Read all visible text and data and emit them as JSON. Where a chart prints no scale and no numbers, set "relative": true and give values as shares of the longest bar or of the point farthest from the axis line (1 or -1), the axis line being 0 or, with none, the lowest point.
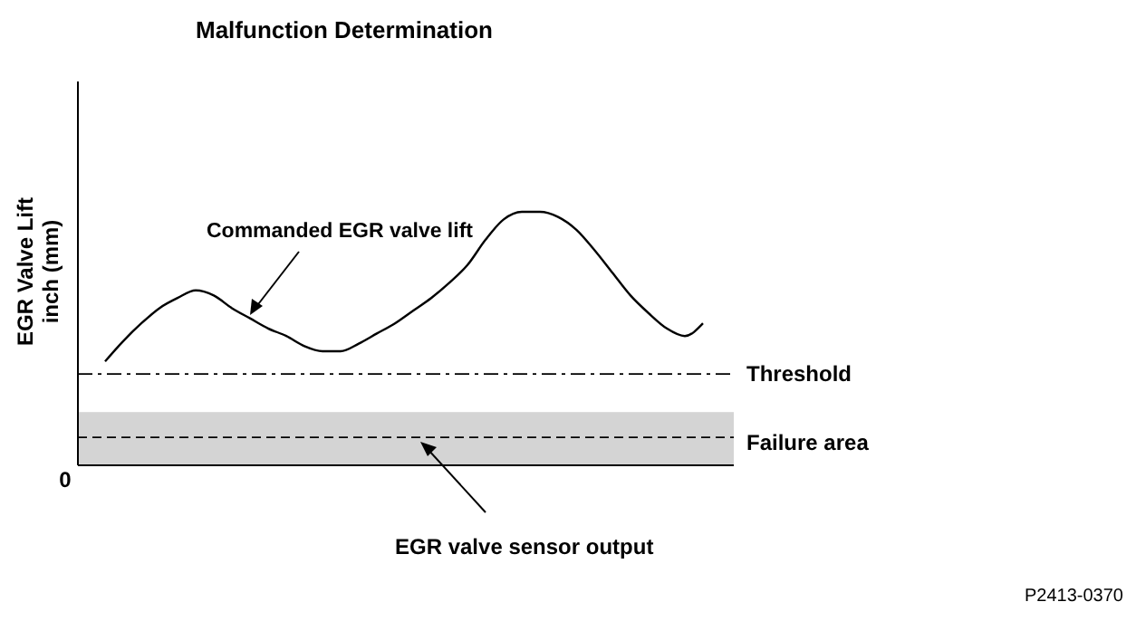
{
  "chart_data": {
    "type": "line",
    "title": "Malfunction Determination",
    "ylabel": "EGR Valve Lift\ninch (mm)",
    "relative": true,
    "color": "#000000",
    "line_style": "solid",
    "marker": "none",
    "categories": [
      null,
      null,
      null,
      null,
      null,
      null,
      null,
      null,
      null,
      null,
      null,
      null,
      null,
      null,
      null,
      null,
      null,
      null,
      null,
      null,
      null,
      null,
      null,
      null,
      null,
      null,
      null,
      null,
      null,
      null,
      null,
      null,
      null,
      null
    ],
    "values": [
      0.41,
      0.49,
      0.56,
      0.62,
      0.66,
      0.69,
      0.67,
      0.62,
      0.58,
      0.54,
      0.51,
      0.47,
      0.45,
      0.45,
      0.48,
      0.52,
      0.56,
      0.61,
      0.66,
      0.72,
      0.79,
      0.89,
      0.97,
      1,
      1,
      0.98,
      0.93,
      0.85,
      0.76,
      0.67,
      0.6,
      0.54,
      0.51,
      0.56
    ],
    "ref_lines": [
      {
        "axis": "y",
        "value": 0.36,
        "label": "Threshold",
        "line_style": "dashdot",
        "color": "#000000"
      },
      {
        "axis": "y",
        "value": 0.11,
        "label": null,
        "line_style": "dashed",
        "color": "#000000"
      }
    ],
    "bands": [
      {
        "axis": "y",
        "from": 0,
        "to": 0.21,
        "label": "Failure area",
        "color": "#d4d4d4"
      }
    ],
    "annotations": [
      "Commanded EGR valve lift",
      "EGR valve sensor output",
      "0",
      "P2413-0370"
    ]
  }
}
